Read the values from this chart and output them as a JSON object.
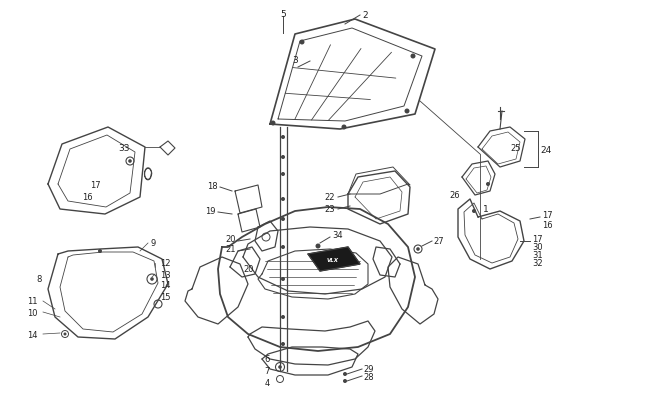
{
  "bg_color": "#ffffff",
  "line_color": "#444444",
  "fig_width": 6.5,
  "fig_height": 4.06,
  "dpi": 100
}
